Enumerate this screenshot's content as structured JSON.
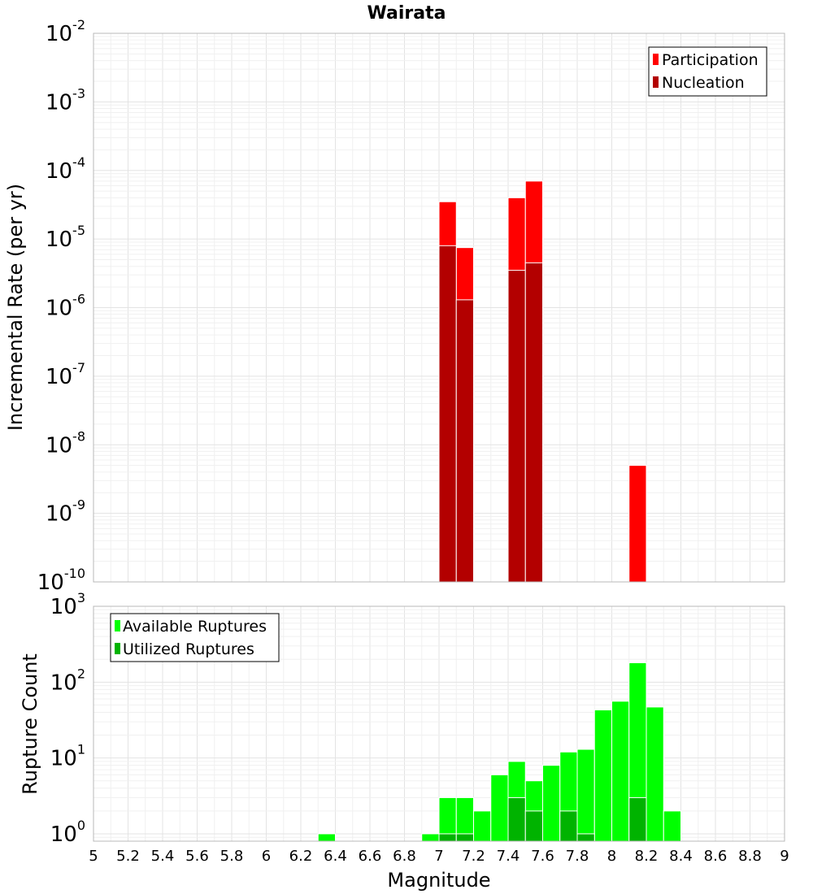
{
  "chart_data": [
    {
      "type": "bar",
      "title": "Wairata",
      "ylabel": "Incremental Rate (per yr)",
      "yscale": "log",
      "ylim": [
        1e-10,
        0.01
      ],
      "xlim": [
        5,
        9
      ],
      "bin_width": 0.1,
      "legend_position": "top-right",
      "series": [
        {
          "name": "Participation",
          "color": "#ff0000",
          "points": [
            {
              "x": 7.05,
              "y": 3.5e-05
            },
            {
              "x": 7.15,
              "y": 7.5e-06
            },
            {
              "x": 7.45,
              "y": 4e-05
            },
            {
              "x": 7.55,
              "y": 7e-05
            },
            {
              "x": 8.15,
              "y": 5e-09
            }
          ]
        },
        {
          "name": "Nucleation",
          "color": "#b30000",
          "points": [
            {
              "x": 7.05,
              "y": 8e-06
            },
            {
              "x": 7.15,
              "y": 1.3e-06
            },
            {
              "x": 7.45,
              "y": 3.5e-06
            },
            {
              "x": 7.55,
              "y": 4.5e-06
            }
          ]
        }
      ]
    },
    {
      "type": "bar",
      "xlabel": "Magnitude",
      "ylabel": "Rupture Count",
      "yscale": "log",
      "ylim": [
        0.8,
        1000
      ],
      "xlim": [
        5,
        9
      ],
      "bin_width": 0.1,
      "legend_position": "top-left",
      "x_ticks": [
        "5",
        "5.2",
        "5.4",
        "5.6",
        "5.8",
        "6",
        "6.2",
        "6.4",
        "6.6",
        "6.8",
        "7",
        "7.2",
        "7.4",
        "7.6",
        "7.8",
        "8",
        "8.2",
        "8.4",
        "8.6",
        "8.8",
        "9"
      ],
      "series": [
        {
          "name": "Available Ruptures",
          "color": "#00ff00",
          "points": [
            {
              "x": 6.35,
              "y": 1
            },
            {
              "x": 6.95,
              "y": 1
            },
            {
              "x": 7.05,
              "y": 3
            },
            {
              "x": 7.15,
              "y": 3
            },
            {
              "x": 7.25,
              "y": 2
            },
            {
              "x": 7.35,
              "y": 6
            },
            {
              "x": 7.45,
              "y": 9
            },
            {
              "x": 7.55,
              "y": 5
            },
            {
              "x": 7.65,
              "y": 8
            },
            {
              "x": 7.75,
              "y": 12
            },
            {
              "x": 7.85,
              "y": 13
            },
            {
              "x": 7.95,
              "y": 43
            },
            {
              "x": 8.05,
              "y": 56
            },
            {
              "x": 8.15,
              "y": 180
            },
            {
              "x": 8.25,
              "y": 47
            },
            {
              "x": 8.35,
              "y": 2
            }
          ]
        },
        {
          "name": "Utilized Ruptures",
          "color": "#00b300",
          "points": [
            {
              "x": 7.05,
              "y": 1
            },
            {
              "x": 7.15,
              "y": 1
            },
            {
              "x": 7.45,
              "y": 3
            },
            {
              "x": 7.55,
              "y": 2
            },
            {
              "x": 7.75,
              "y": 2
            },
            {
              "x": 7.85,
              "y": 1
            },
            {
              "x": 8.15,
              "y": 3
            }
          ]
        }
      ]
    }
  ]
}
